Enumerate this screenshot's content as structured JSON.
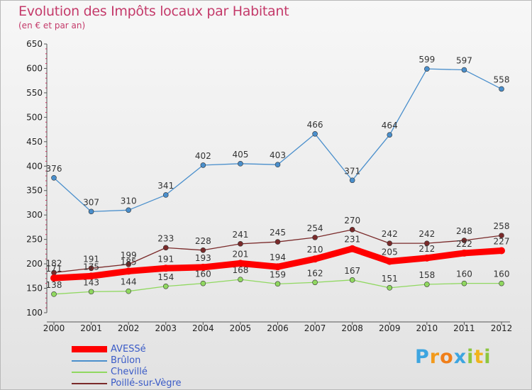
{
  "chart_data": {
    "type": "line",
    "title": "Evolution des Impôts locaux par Habitant",
    "subtitle": "(en € et par an)",
    "x": [
      "2000",
      "2001",
      "2002",
      "2003",
      "2004",
      "2005",
      "2006",
      "2007",
      "2008",
      "2009",
      "2010",
      "2011",
      "2012"
    ],
    "ylim": [
      100,
      650
    ],
    "yticks": [
      100,
      150,
      200,
      250,
      300,
      350,
      400,
      450,
      500,
      550,
      600,
      650
    ],
    "grid": false,
    "legend_position": "bottom-left",
    "series": [
      {
        "name": "AVESSé",
        "color": "#ff0000",
        "values": [
          171,
          175,
          185,
          191,
          193,
          201,
          194,
          210,
          231,
          205,
          212,
          222,
          227
        ],
        "labels": [
          "171",
          "175",
          "185",
          "191",
          "193",
          "201",
          "194",
          "210",
          "231",
          "205",
          "212",
          "222",
          "227"
        ]
      },
      {
        "name": "Brûlon",
        "color": "#4a8fcc",
        "values": [
          376,
          307,
          310,
          341,
          402,
          405,
          403,
          466,
          371,
          464,
          599,
          597,
          558
        ],
        "labels": [
          "376",
          "307",
          "310",
          "341",
          "402",
          "405",
          "403",
          "466",
          "371",
          "464",
          "599",
          "597",
          "558"
        ]
      },
      {
        "name": "Chevillé",
        "color": "#90d860",
        "values": [
          138,
          143,
          144,
          154,
          160,
          168,
          159,
          162,
          167,
          151,
          158,
          160,
          160
        ],
        "labels": [
          "138",
          "143",
          "144",
          "154",
          "160",
          "168",
          "159",
          "162",
          "167",
          "151",
          "158",
          "160",
          "160"
        ]
      },
      {
        "name": "Poillé-sur-Vègre",
        "color": "#7a2a2a",
        "values": [
          182,
          191,
          199,
          233,
          228,
          241,
          245,
          254,
          270,
          242,
          242,
          248,
          258
        ],
        "labels": [
          "182",
          "191",
          "199",
          "233",
          "228",
          "241",
          "245",
          "254",
          "270",
          "242",
          "242",
          "248",
          "258"
        ]
      }
    ]
  },
  "logo": {
    "letters": [
      "P",
      "r",
      "o",
      "x",
      "i",
      "t",
      "i"
    ],
    "colors": [
      "#3da5e0",
      "#f29a1c",
      "#f07f1a",
      "#3da5e0",
      "#8cc63f",
      "#f0b41c",
      "#8cc63f"
    ]
  }
}
